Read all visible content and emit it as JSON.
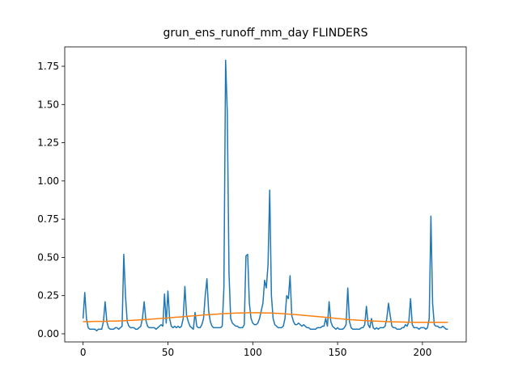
{
  "chart_data": {
    "type": "line",
    "title": "grun_ens_runoff_mm_day FLINDERS",
    "x": [
      0,
      1,
      2,
      3,
      4,
      5,
      6,
      7,
      8,
      9,
      10,
      11,
      12,
      13,
      14,
      15,
      16,
      17,
      18,
      19,
      20,
      21,
      22,
      23,
      24,
      25,
      26,
      27,
      28,
      29,
      30,
      31,
      32,
      33,
      34,
      35,
      36,
      37,
      38,
      39,
      40,
      41,
      42,
      43,
      44,
      45,
      46,
      47,
      48,
      49,
      50,
      51,
      52,
      53,
      54,
      55,
      56,
      57,
      58,
      59,
      60,
      61,
      62,
      63,
      64,
      65,
      66,
      67,
      68,
      69,
      70,
      71,
      72,
      73,
      74,
      75,
      76,
      77,
      78,
      79,
      80,
      81,
      82,
      83,
      84,
      85,
      86,
      87,
      88,
      89,
      90,
      91,
      92,
      93,
      94,
      95,
      96,
      97,
      98,
      99,
      100,
      101,
      102,
      103,
      104,
      105,
      106,
      107,
      108,
      109,
      110,
      111,
      112,
      113,
      114,
      115,
      116,
      117,
      118,
      119,
      120,
      121,
      122,
      123,
      124,
      125,
      126,
      127,
      128,
      129,
      130,
      131,
      132,
      133,
      134,
      135,
      136,
      137,
      138,
      139,
      140,
      141,
      142,
      143,
      144,
      145,
      146,
      147,
      148,
      149,
      150,
      151,
      152,
      153,
      154,
      155,
      156,
      157,
      158,
      159,
      160,
      161,
      162,
      163,
      164,
      165,
      166,
      167,
      168,
      169,
      170,
      171,
      172,
      173,
      174,
      175,
      176,
      177,
      178,
      179,
      180,
      181,
      182,
      183,
      184,
      185,
      186,
      187,
      188,
      189,
      190,
      191,
      192,
      193,
      194,
      195,
      196,
      197,
      198,
      199,
      200,
      201,
      202,
      203,
      204,
      205,
      206,
      207,
      208,
      209,
      210,
      211,
      212,
      213,
      214,
      215
    ],
    "series": [
      {
        "color": "#1f77b4",
        "values": [
          0.1,
          0.27,
          0.1,
          0.04,
          0.03,
          0.03,
          0.03,
          0.03,
          0.02,
          0.03,
          0.03,
          0.03,
          0.08,
          0.21,
          0.08,
          0.04,
          0.03,
          0.03,
          0.03,
          0.04,
          0.04,
          0.03,
          0.04,
          0.05,
          0.52,
          0.25,
          0.08,
          0.05,
          0.04,
          0.04,
          0.04,
          0.03,
          0.03,
          0.04,
          0.05,
          0.1,
          0.21,
          0.09,
          0.05,
          0.04,
          0.04,
          0.04,
          0.04,
          0.03,
          0.04,
          0.05,
          0.06,
          0.05,
          0.26,
          0.07,
          0.28,
          0.1,
          0.05,
          0.04,
          0.05,
          0.04,
          0.05,
          0.04,
          0.05,
          0.1,
          0.31,
          0.12,
          0.08,
          0.05,
          0.04,
          0.03,
          0.14,
          0.05,
          0.04,
          0.04,
          0.06,
          0.1,
          0.25,
          0.36,
          0.15,
          0.08,
          0.05,
          0.04,
          0.04,
          0.04,
          0.04,
          0.04,
          0.05,
          0.3,
          1.79,
          1.45,
          0.4,
          0.1,
          0.07,
          0.06,
          0.05,
          0.05,
          0.04,
          0.04,
          0.04,
          0.06,
          0.51,
          0.52,
          0.2,
          0.1,
          0.07,
          0.06,
          0.06,
          0.07,
          0.1,
          0.15,
          0.2,
          0.35,
          0.3,
          0.45,
          0.94,
          0.25,
          0.1,
          0.06,
          0.05,
          0.04,
          0.04,
          0.04,
          0.05,
          0.1,
          0.25,
          0.23,
          0.38,
          0.12,
          0.08,
          0.06,
          0.06,
          0.07,
          0.06,
          0.05,
          0.06,
          0.05,
          0.04,
          0.04,
          0.03,
          0.03,
          0.03,
          0.03,
          0.04,
          0.04,
          0.04,
          0.05,
          0.05,
          0.1,
          0.05,
          0.21,
          0.08,
          0.05,
          0.04,
          0.03,
          0.04,
          0.03,
          0.03,
          0.03,
          0.04,
          0.06,
          0.3,
          0.08,
          0.04,
          0.03,
          0.03,
          0.03,
          0.03,
          0.03,
          0.04,
          0.04,
          0.06,
          0.18,
          0.06,
          0.04,
          0.1,
          0.04,
          0.03,
          0.04,
          0.03,
          0.04,
          0.04,
          0.04,
          0.05,
          0.1,
          0.2,
          0.12,
          0.05,
          0.04,
          0.04,
          0.03,
          0.03,
          0.03,
          0.04,
          0.04,
          0.06,
          0.05,
          0.08,
          0.23,
          0.06,
          0.04,
          0.04,
          0.04,
          0.03,
          0.04,
          0.04,
          0.04,
          0.03,
          0.04,
          0.1,
          0.77,
          0.2,
          0.06,
          0.05,
          0.05,
          0.04,
          0.04,
          0.05,
          0.04,
          0.03,
          0.03
        ]
      },
      {
        "color": "#ff7f0e",
        "values": [
          0.08,
          0.08,
          0.08,
          0.08,
          0.08,
          0.08,
          0.081,
          0.081,
          0.081,
          0.081,
          0.081,
          0.081,
          0.082,
          0.082,
          0.082,
          0.083,
          0.083,
          0.083,
          0.083,
          0.084,
          0.084,
          0.084,
          0.085,
          0.085,
          0.086,
          0.086,
          0.087,
          0.087,
          0.088,
          0.088,
          0.089,
          0.09,
          0.09,
          0.091,
          0.092,
          0.092,
          0.093,
          0.094,
          0.094,
          0.095,
          0.096,
          0.097,
          0.098,
          0.098,
          0.099,
          0.1,
          0.101,
          0.102,
          0.102,
          0.103,
          0.104,
          0.105,
          0.106,
          0.107,
          0.108,
          0.109,
          0.109,
          0.11,
          0.111,
          0.112,
          0.113,
          0.114,
          0.115,
          0.116,
          0.117,
          0.118,
          0.118,
          0.119,
          0.12,
          0.121,
          0.122,
          0.123,
          0.124,
          0.124,
          0.125,
          0.126,
          0.127,
          0.128,
          0.128,
          0.129,
          0.13,
          0.131,
          0.131,
          0.132,
          0.133,
          0.133,
          0.134,
          0.134,
          0.135,
          0.135,
          0.136,
          0.136,
          0.136,
          0.137,
          0.137,
          0.137,
          0.137,
          0.138,
          0.138,
          0.138,
          0.138,
          0.138,
          0.138,
          0.138,
          0.138,
          0.137,
          0.137,
          0.137,
          0.137,
          0.136,
          0.136,
          0.136,
          0.135,
          0.135,
          0.134,
          0.134,
          0.133,
          0.132,
          0.132,
          0.131,
          0.13,
          0.129,
          0.128,
          0.128,
          0.127,
          0.126,
          0.125,
          0.124,
          0.123,
          0.122,
          0.121,
          0.12,
          0.119,
          0.118,
          0.117,
          0.116,
          0.115,
          0.114,
          0.113,
          0.112,
          0.111,
          0.11,
          0.109,
          0.108,
          0.107,
          0.106,
          0.105,
          0.104,
          0.102,
          0.101,
          0.1,
          0.099,
          0.098,
          0.097,
          0.096,
          0.095,
          0.094,
          0.093,
          0.092,
          0.092,
          0.091,
          0.09,
          0.089,
          0.089,
          0.088,
          0.087,
          0.087,
          0.086,
          0.085,
          0.085,
          0.084,
          0.084,
          0.083,
          0.083,
          0.082,
          0.082,
          0.081,
          0.081,
          0.08,
          0.08,
          0.079,
          0.079,
          0.079,
          0.078,
          0.078,
          0.078,
          0.077,
          0.077,
          0.077,
          0.077,
          0.076,
          0.076,
          0.076,
          0.076,
          0.076,
          0.076,
          0.075,
          0.075,
          0.075,
          0.075,
          0.075,
          0.075,
          0.075,
          0.075,
          0.075,
          0.075,
          0.075,
          0.075,
          0.075,
          0.075,
          0.075,
          0.075,
          0.075,
          0.075,
          0.075,
          0.075
        ]
      }
    ],
    "xlim": [
      -10.8,
      225.8
    ],
    "ylim": [
      -0.053,
      1.877
    ],
    "xticks": [
      0,
      50,
      100,
      150,
      200
    ],
    "yticks": [
      {
        "value": 0,
        "label": "0.00"
      },
      {
        "value": 0.25,
        "label": "0.25"
      },
      {
        "value": 0.5,
        "label": "0.50"
      },
      {
        "value": 0.75,
        "label": "0.75"
      },
      {
        "value": 1,
        "label": "1.00"
      },
      {
        "value": 1.25,
        "label": "1.25"
      },
      {
        "value": 1.5,
        "label": "1.50"
      },
      {
        "value": 1.75,
        "label": "1.75"
      }
    ]
  }
}
